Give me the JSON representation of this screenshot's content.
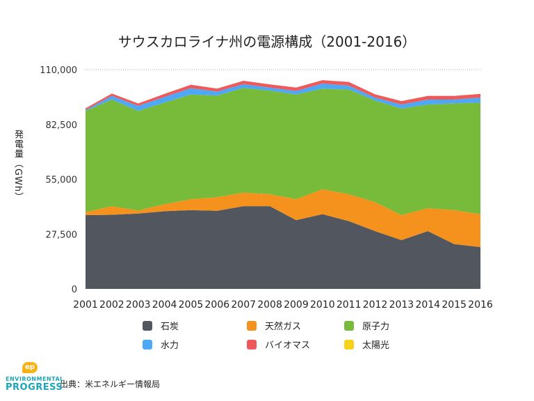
{
  "title": "サウスカロライナ州の電源構成（2001-2016）",
  "source_text": "出典：米エネルギー情報局",
  "logo": {
    "badge": "ep",
    "line1": "ENVIRONMENTAL",
    "line2": "PROGRESS"
  },
  "colors": {
    "coal": "#52565e",
    "gas": "#f5921e",
    "nuclear": "#78bb3a",
    "hydro": "#4fa8f6",
    "biomass": "#ee5a5a",
    "solar": "#f8d21a",
    "grid": "#aaaaaa"
  },
  "chart_data": {
    "type": "area",
    "stacked": true,
    "title": "サウスカロライナ州の電源構成（2001-2016）",
    "ylabel": "発電量（GWh）",
    "xlabel": "",
    "x": [
      "2001",
      "2002",
      "2003",
      "2004",
      "2005",
      "2006",
      "2007",
      "2008",
      "2009",
      "2010",
      "2011",
      "2012",
      "2013",
      "2014",
      "2015",
      "2016"
    ],
    "ylim": [
      0,
      110000
    ],
    "yticks": [
      "0",
      "27,500",
      "55,000",
      "82,500",
      "110,000"
    ],
    "ytick_values": [
      0,
      27500,
      55000,
      82500,
      110000
    ],
    "series": [
      {
        "name": "石炭",
        "key": "coal",
        "values": [
          37000,
          37200,
          37800,
          39000,
          39500,
          39200,
          41500,
          41500,
          34500,
          37500,
          34000,
          29000,
          24500,
          29000,
          22500,
          21000
        ]
      },
      {
        "name": "天然ガス",
        "key": "gas",
        "values": [
          1500,
          4300,
          1500,
          3500,
          5500,
          6800,
          6800,
          6000,
          10500,
          12500,
          13500,
          14500,
          12500,
          11500,
          17000,
          16500
        ]
      },
      {
        "name": "原子力",
        "key": "nuclear",
        "values": [
          50800,
          53500,
          50000,
          51000,
          52500,
          51000,
          52500,
          52000,
          52500,
          50500,
          52500,
          51000,
          53500,
          52000,
          53500,
          56000
        ]
      },
      {
        "name": "水力",
        "key": "hydro",
        "values": [
          500,
          1800,
          2500,
          2800,
          3200,
          2000,
          1900,
          1500,
          1800,
          2500,
          2000,
          1500,
          2000,
          2500,
          2000,
          2500
        ]
      },
      {
        "name": "バイオマス",
        "key": "biomass",
        "values": [
          800,
          1200,
          1200,
          1500,
          1700,
          1500,
          1700,
          1600,
          1700,
          1700,
          1800,
          1600,
          1700,
          1800,
          1800,
          1800
        ]
      },
      {
        "name": "太陽光",
        "key": "solar",
        "values": [
          0,
          0,
          0,
          0,
          0,
          0,
          0,
          0,
          0,
          0,
          0,
          0,
          0,
          0,
          0,
          100
        ]
      }
    ],
    "grid": "top-line-only",
    "legend_position": "bottom"
  }
}
